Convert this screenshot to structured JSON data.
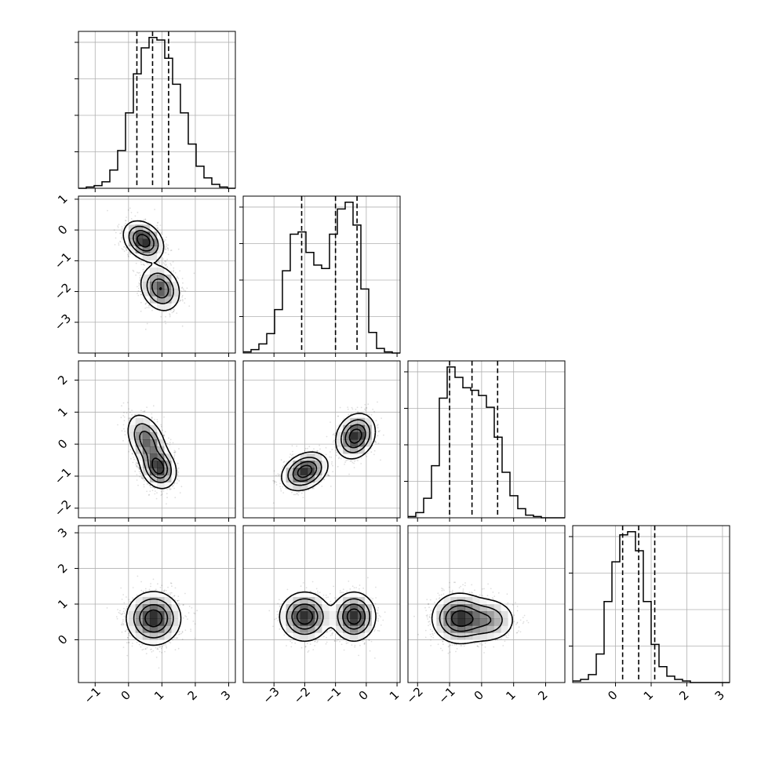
{
  "chart_data": {
    "type": "corner",
    "title": "",
    "parameters": [
      {
        "name": "",
        "range": [
          -1.5,
          3.2
        ],
        "ticks": [
          -1,
          0,
          1,
          2,
          3
        ],
        "quantiles": [
          0.25,
          0.72,
          1.2
        ],
        "histogram": {
          "start": -1.5,
          "bin_width": 0.235,
          "counts": [
            0,
            1,
            2,
            5,
            14,
            29,
            58,
            88,
            108,
            116,
            114,
            100,
            80,
            58,
            34,
            17,
            8,
            3,
            1,
            0
          ]
        }
      },
      {
        "name": "",
        "range": [
          -4.0,
          1.1
        ],
        "ticks": [
          -3,
          -2,
          -1,
          0,
          1
        ],
        "quantiles": [
          -2.1,
          -1.0,
          -0.3
        ],
        "histogram": {
          "start": -4.0,
          "bin_width": 0.255,
          "counts": [
            1,
            3,
            8,
            17,
            38,
            72,
            104,
            106,
            88,
            77,
            74,
            104,
            126,
            132,
            112,
            56,
            18,
            4,
            1,
            0
          ]
        }
      },
      {
        "name": "",
        "range": [
          -2.3,
          2.6
        ],
        "ticks": [
          -2,
          -1,
          0,
          1,
          2
        ],
        "quantiles": [
          -1.0,
          -0.3,
          0.5
        ],
        "histogram": {
          "start": -2.3,
          "bin_width": 0.245,
          "counts": [
            1,
            4,
            15,
            40,
            92,
            116,
            108,
            100,
            98,
            94,
            85,
            62,
            35,
            17,
            7,
            2,
            1,
            0,
            0,
            0
          ]
        }
      },
      {
        "name": "",
        "range": [
          -1.2,
          3.2
        ],
        "ticks": [
          0,
          1,
          2,
          3
        ],
        "quantiles": [
          0.2,
          0.65,
          1.1
        ],
        "histogram": {
          "start": -1.2,
          "bin_width": 0.22,
          "counts": [
            1,
            2,
            5,
            18,
            51,
            76,
            93,
            95,
            83,
            51,
            24,
            10,
            4,
            2,
            1,
            0,
            0,
            0,
            0,
            0
          ]
        }
      }
    ],
    "density_modes": {
      "p01": [
        {
          "x": 0.45,
          "y": -0.35,
          "sx": 0.28,
          "sy": 0.3,
          "rho": -0.3,
          "w": 1.0
        },
        {
          "x": 0.95,
          "y": -1.9,
          "sx": 0.28,
          "sy": 0.35,
          "rho": -0.2,
          "w": 0.8
        }
      ],
      "p02": [
        {
          "x": 0.55,
          "y": 0.1,
          "sx": 0.28,
          "sy": 0.4,
          "rho": -0.4,
          "w": 0.8
        },
        {
          "x": 0.9,
          "y": -0.75,
          "sx": 0.25,
          "sy": 0.3,
          "rho": -0.2,
          "w": 1.0
        }
      ],
      "p12": [
        {
          "x": -2.0,
          "y": -0.85,
          "sx": 0.35,
          "sy": 0.28,
          "rho": 0.3,
          "w": 1.0
        },
        {
          "x": -0.35,
          "y": 0.25,
          "sx": 0.3,
          "sy": 0.33,
          "rho": 0.2,
          "w": 1.0
        }
      ],
      "p03": [
        {
          "x": 0.75,
          "y": 0.6,
          "sx": 0.38,
          "sy": 0.35,
          "rho": 0.0,
          "w": 1.0
        }
      ],
      "p13": [
        {
          "x": -2.0,
          "y": 0.65,
          "sx": 0.38,
          "sy": 0.32,
          "rho": 0.0,
          "w": 1.0
        },
        {
          "x": -0.4,
          "y": 0.65,
          "sx": 0.33,
          "sy": 0.32,
          "rho": 0.0,
          "w": 1.0
        }
      ],
      "p23": [
        {
          "x": -0.7,
          "y": 0.6,
          "sx": 0.4,
          "sy": 0.33,
          "rho": 0.0,
          "w": 1.0
        },
        {
          "x": 0.2,
          "y": 0.55,
          "sx": 0.42,
          "sy": 0.3,
          "rho": 0.0,
          "w": 0.55
        }
      ]
    },
    "grid": true,
    "legend": "none"
  }
}
